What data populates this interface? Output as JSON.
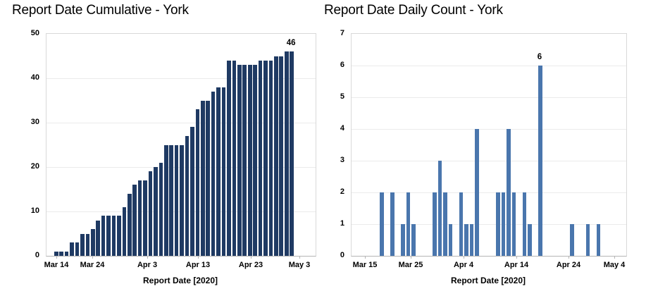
{
  "figure": {
    "background": "#ffffff",
    "text_color": "#000000",
    "grid_color": "#ebebeb",
    "plot_border_color": "#d9d9d9",
    "axis_line_color": "#b5b5b5"
  },
  "chart_data": [
    {
      "type": "bar",
      "title": "Report Date Cumulative - York",
      "xlabel": "Report Date [2020]",
      "ylabel": "",
      "ylim": [
        0,
        50
      ],
      "yticks": [
        0,
        10,
        20,
        30,
        40,
        50
      ],
      "xtick_labels": [
        "Mar 14",
        "Mar 24",
        "Apr 3",
        "Apr 13",
        "Apr 23",
        "May 3"
      ],
      "grid": "horizontal",
      "legend": "none",
      "bar_color": "#1f3a63",
      "categories": [
        "Mar 15",
        "Mar 16",
        "Mar 17",
        "Mar 18",
        "Mar 19",
        "Mar 20",
        "Mar 21",
        "Mar 22",
        "Mar 23",
        "Mar 24",
        "Mar 25",
        "Mar 26",
        "Mar 27",
        "Mar 28",
        "Mar 29",
        "Mar 30",
        "Mar 31",
        "Apr 1",
        "Apr 2",
        "Apr 3",
        "Apr 4",
        "Apr 5",
        "Apr 6",
        "Apr 7",
        "Apr 8",
        "Apr 9",
        "Apr 10",
        "Apr 11",
        "Apr 12",
        "Apr 13",
        "Apr 14",
        "Apr 15",
        "Apr 16",
        "Apr 17",
        "Apr 18",
        "Apr 19",
        "Apr 20",
        "Apr 21",
        "Apr 22",
        "Apr 23",
        "Apr 24",
        "Apr 25",
        "Apr 26",
        "Apr 27",
        "Apr 28",
        "Apr 29"
      ],
      "values": [
        1,
        1,
        1,
        3,
        3,
        5,
        5,
        6,
        8,
        9,
        9,
        9,
        9,
        11,
        14,
        16,
        17,
        17,
        19,
        20,
        21,
        25,
        25,
        25,
        25,
        27,
        29,
        33,
        35,
        35,
        37,
        38,
        38,
        44,
        44,
        43,
        43,
        43,
        43,
        44,
        44,
        44,
        45,
        45,
        46,
        46
      ],
      "callout": {
        "date": "Apr 29",
        "text": "46"
      }
    },
    {
      "type": "bar",
      "title": "Report Date Daily Count - York",
      "xlabel": "Report Date [2020]",
      "ylabel": "",
      "ylim": [
        0,
        7
      ],
      "yticks": [
        0,
        1,
        2,
        3,
        4,
        5,
        6,
        7
      ],
      "xtick_labels": [
        "Mar 15",
        "Mar 25",
        "Apr 4",
        "Apr 14",
        "Apr 24",
        "May 4"
      ],
      "grid": "horizontal",
      "legend": "none",
      "bar_color": "#4a76ad",
      "categories": [
        "Mar 18",
        "Mar 20",
        "Mar 22",
        "Mar 23",
        "Mar 24",
        "Mar 28",
        "Mar 29",
        "Mar 30",
        "Mar 31",
        "Apr 2",
        "Apr 3",
        "Apr 4",
        "Apr 5",
        "Apr 9",
        "Apr 10",
        "Apr 11",
        "Apr 12",
        "Apr 14",
        "Apr 15",
        "Apr 17",
        "Apr 23",
        "Apr 26",
        "Apr 28"
      ],
      "values": [
        2,
        2,
        1,
        2,
        1,
        2,
        3,
        2,
        1,
        2,
        1,
        1,
        4,
        2,
        2,
        4,
        2,
        2,
        1,
        6,
        1,
        1,
        1
      ],
      "callout": {
        "date": "Apr 17",
        "text": "6"
      }
    }
  ]
}
